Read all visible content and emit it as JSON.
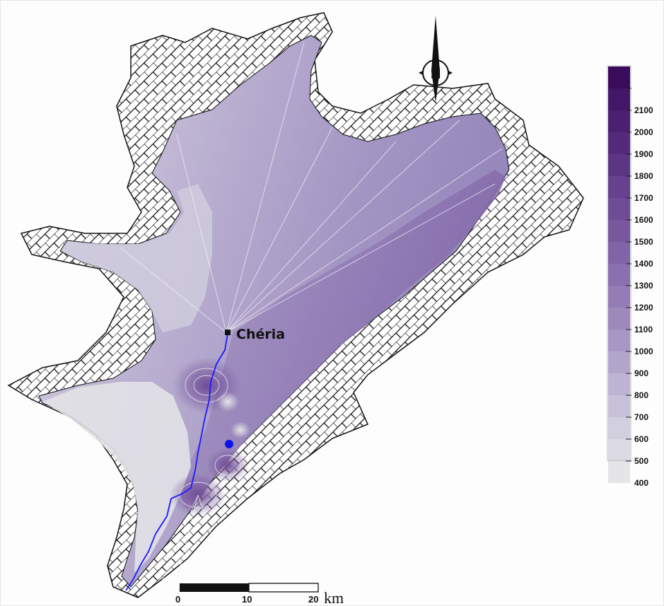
{
  "map": {
    "place_label": "Chéria",
    "north_letter": "N",
    "legend": {
      "levels": [
        {
          "label": "",
          "color": "#3a0b5c"
        },
        {
          "label": "2100",
          "color": "#43166a"
        },
        {
          "label": "2000",
          "color": "#4b2073"
        },
        {
          "label": "1900",
          "color": "#542b7c"
        },
        {
          "label": "1800",
          "color": "#5c3685"
        },
        {
          "label": "1700",
          "color": "#65418e"
        },
        {
          "label": "1600",
          "color": "#6e4c96"
        },
        {
          "label": "1500",
          "color": "#77589e"
        },
        {
          "label": "1400",
          "color": "#8064a7"
        },
        {
          "label": "1300",
          "color": "#8a70ae"
        },
        {
          "label": "1200",
          "color": "#947db6"
        },
        {
          "label": "1100",
          "color": "#9e89bd"
        },
        {
          "label": "1000",
          "color": "#a897c5"
        },
        {
          "label": "900",
          "color": "#b2a5cc"
        },
        {
          "label": "800",
          "color": "#bdb3d2"
        },
        {
          "label": "700",
          "color": "#c8c2d9"
        },
        {
          "label": "600",
          "color": "#d2cfdf"
        },
        {
          "label": "500",
          "color": "#dcdbe3"
        },
        {
          "label": "400",
          "color": "#e5e5e8"
        }
      ]
    },
    "scale_bar": {
      "ticks": [
        "0",
        "10",
        "20"
      ],
      "unit": "km"
    },
    "colors": {
      "river": "#1a1aff",
      "point": "#0a14e6",
      "hatch_outline": "#111111"
    }
  }
}
